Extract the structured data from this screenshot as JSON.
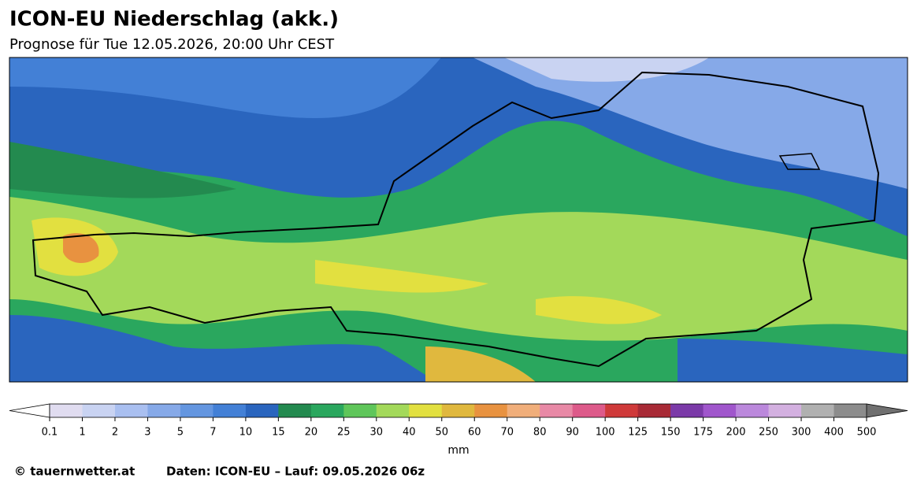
{
  "header": {
    "title": "ICON-EU Niederschlag (akk.)",
    "subtitle": "Prognose für Tue 12.05.2026, 20:00 Uhr CEST"
  },
  "colorbar": {
    "ticks": [
      0.1,
      1,
      2,
      3,
      5,
      7,
      10,
      15,
      20,
      25,
      30,
      40,
      50,
      60,
      70,
      80,
      90,
      100,
      125,
      150,
      175,
      200,
      250,
      300,
      400,
      500
    ],
    "colors": [
      "#e0dcf0",
      "#c9d3f2",
      "#a9bff0",
      "#86a9e8",
      "#6496e0",
      "#4380d6",
      "#2a65be",
      "#238a4f",
      "#2aa75e",
      "#5fc65a",
      "#a3d95a",
      "#e2e040",
      "#e0b83e",
      "#e89240",
      "#f0ae7a",
      "#e889a6",
      "#dd5a8a",
      "#cf3a3a",
      "#a82a36",
      "#7b3aa8",
      "#a056cc",
      "#bb88dc",
      "#d3b0e0",
      "#b0b0b0",
      "#8c8c8c"
    ],
    "under_color": "#ffffff",
    "over_color": "#707070",
    "unit": "mm"
  },
  "footer": {
    "copyright": "© tauernwetter.at",
    "source": "Daten: ICON-EU – Lauf: 09.05.2026 06z"
  }
}
